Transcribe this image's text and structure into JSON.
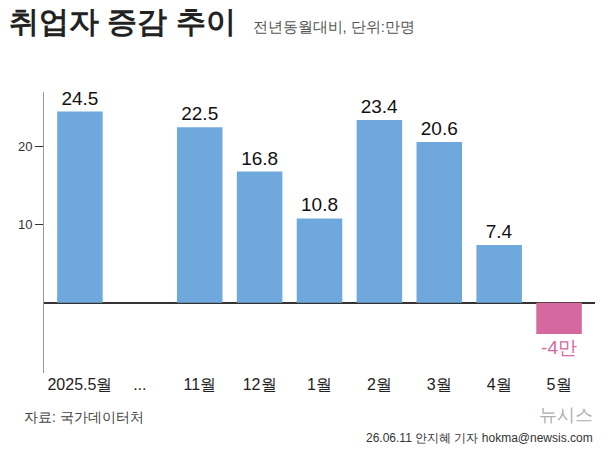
{
  "chart_data": {
    "type": "bar",
    "title": "취업자 증감 추이",
    "subtitle": "전년동월대비, 단위:만명",
    "categories": [
      "2025.5월",
      "...",
      "11월",
      "12월",
      "1월",
      "2월",
      "3월",
      "4월",
      "5월"
    ],
    "values": [
      24.5,
      null,
      22.5,
      16.8,
      10.8,
      23.4,
      20.6,
      7.4,
      -4
    ],
    "value_labels": [
      "24.5",
      null,
      "22.5",
      "16.8",
      "10.8",
      "23.4",
      "20.6",
      "7.4",
      "-4만"
    ],
    "colors": [
      "#6fa8dc",
      "#6fa8dc",
      "#6fa8dc",
      "#6fa8dc",
      "#6fa8dc",
      "#6fa8dc",
      "#6fa8dc",
      "#6fa8dc",
      "#d4689f"
    ],
    "data_labels": true,
    "ylim": [
      -9,
      27
    ],
    "yticks": [
      10,
      20
    ],
    "grid": false,
    "annotations": [
      "자료: 국가데이터처",
      "뉴시스",
      "26.06.11 안지혜 기자 hokma@newsis.com"
    ]
  }
}
